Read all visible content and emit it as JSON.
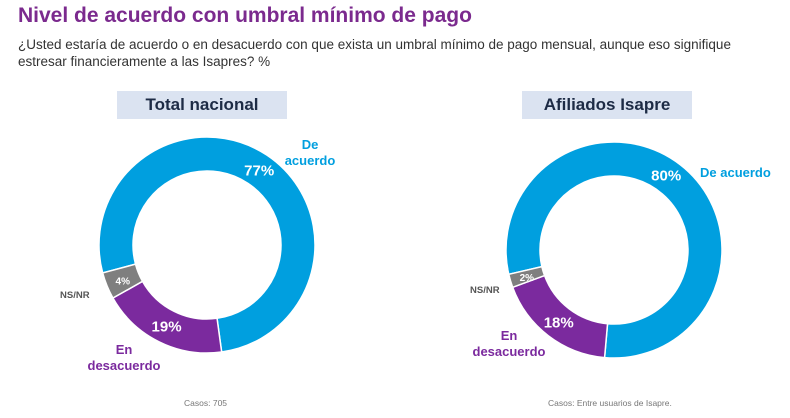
{
  "title": "Nivel de acuerdo con umbral mínimo de pago",
  "subtitle": "¿Usted estaría de acuerdo o en desacuerdo con que exista un umbral mínimo de pago mensual, aunque eso signifique estresar financieramente a las Isapres?  %",
  "colors": {
    "acuerdo": "#009fdf",
    "desacuerdo": "#7b2a9e",
    "nsnr": "#7f7f7f",
    "title": "#7b2a8e"
  },
  "chart_data": [
    {
      "type": "pie",
      "title": "Total nacional",
      "categories": [
        "De acuerdo",
        "En desacuerdo",
        "NS/NR"
      ],
      "values": [
        77,
        19,
        4
      ],
      "data_labels": [
        "77%",
        "19%",
        "4%"
      ],
      "cases_label": "Casos:",
      "cases_value": "705"
    },
    {
      "type": "pie",
      "title": "Afiliados Isapre",
      "categories": [
        "De acuerdo",
        "En desacuerdo",
        "NS/NR"
      ],
      "values": [
        80,
        18,
        2
      ],
      "data_labels": [
        "80%",
        "18%",
        "2%"
      ],
      "cases_label": "Casos:",
      "cases_value": "Entre usuarios de Isapre."
    }
  ],
  "labels": {
    "acuerdo_split": [
      "De",
      "acuerdo"
    ],
    "desacuerdo_split": [
      "En",
      "desacuerdo"
    ]
  }
}
